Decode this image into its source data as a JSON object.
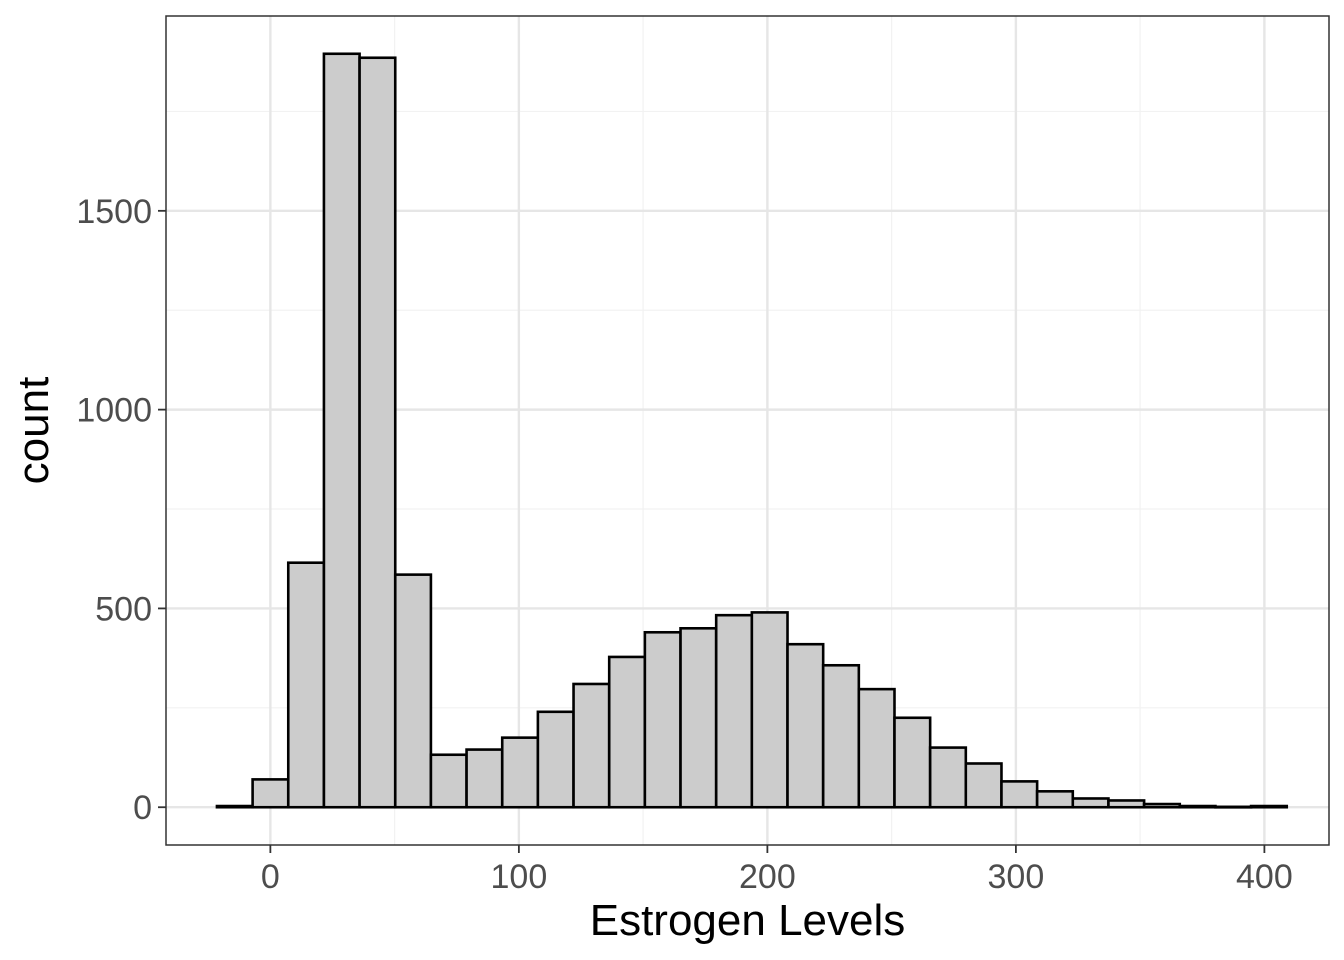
{
  "chart_data": {
    "type": "bar",
    "subtype": "histogram",
    "title": "",
    "xlabel": "Estrogen Levels",
    "ylabel": "count",
    "xlim": [
      -42,
      426
    ],
    "ylim": [
      -95,
      1990
    ],
    "x_ticks": [
      0,
      100,
      200,
      300,
      400
    ],
    "x_tick_labels": [
      "0",
      "100",
      "200",
      "300",
      "400"
    ],
    "y_ticks": [
      0,
      500,
      1000,
      1500
    ],
    "y_tick_labels": [
      "0",
      "500",
      "1000",
      "1500"
    ],
    "y_minor_ticks": [
      250,
      750,
      1250,
      1750
    ],
    "x_minor_ticks": [
      50,
      150,
      250,
      350
    ],
    "grid": true,
    "bin_width": 14.35,
    "bins": [
      {
        "x0": -21.5,
        "x1": -7.15,
        "count": 3
      },
      {
        "x0": -7.15,
        "x1": 7.2,
        "count": 70
      },
      {
        "x0": 7.2,
        "x1": 21.55,
        "count": 615
      },
      {
        "x0": 21.55,
        "x1": 35.9,
        "count": 1895
      },
      {
        "x0": 35.9,
        "x1": 50.25,
        "count": 1885
      },
      {
        "x0": 50.25,
        "x1": 64.6,
        "count": 585
      },
      {
        "x0": 64.6,
        "x1": 78.95,
        "count": 132
      },
      {
        "x0": 78.95,
        "x1": 93.3,
        "count": 145
      },
      {
        "x0": 93.3,
        "x1": 107.65,
        "count": 175
      },
      {
        "x0": 107.65,
        "x1": 122.0,
        "count": 240
      },
      {
        "x0": 122.0,
        "x1": 136.35,
        "count": 310
      },
      {
        "x0": 136.35,
        "x1": 150.7,
        "count": 378
      },
      {
        "x0": 150.7,
        "x1": 165.05,
        "count": 440
      },
      {
        "x0": 165.05,
        "x1": 179.4,
        "count": 450
      },
      {
        "x0": 179.4,
        "x1": 193.75,
        "count": 483
      },
      {
        "x0": 193.75,
        "x1": 208.1,
        "count": 490
      },
      {
        "x0": 208.1,
        "x1": 222.45,
        "count": 410
      },
      {
        "x0": 222.45,
        "x1": 236.8,
        "count": 357
      },
      {
        "x0": 236.8,
        "x1": 251.15,
        "count": 297
      },
      {
        "x0": 251.15,
        "x1": 265.5,
        "count": 225
      },
      {
        "x0": 265.5,
        "x1": 279.85,
        "count": 150
      },
      {
        "x0": 279.85,
        "x1": 294.2,
        "count": 110
      },
      {
        "x0": 294.2,
        "x1": 308.55,
        "count": 65
      },
      {
        "x0": 308.55,
        "x1": 322.9,
        "count": 40
      },
      {
        "x0": 322.9,
        "x1": 337.25,
        "count": 22
      },
      {
        "x0": 337.25,
        "x1": 351.6,
        "count": 17
      },
      {
        "x0": 351.6,
        "x1": 365.95,
        "count": 8
      },
      {
        "x0": 365.95,
        "x1": 380.3,
        "count": 3
      },
      {
        "x0": 380.3,
        "x1": 394.65,
        "count": 1
      },
      {
        "x0": 394.65,
        "x1": 409.0,
        "count": 3
      }
    ],
    "colors": {
      "bar_fill": "#cccccc",
      "bar_stroke": "#000000",
      "panel_border": "#333333",
      "grid_major": "#e6e6e6",
      "grid_minor": "#f2f2f2",
      "tick_label": "#4d4d4d"
    }
  }
}
